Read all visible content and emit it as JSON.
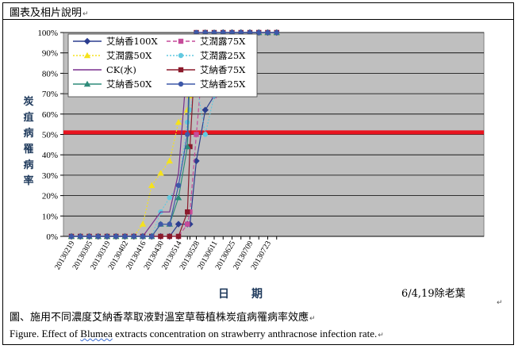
{
  "header": {
    "title": "圖表及相片說明"
  },
  "chart_data": {
    "type": "line",
    "ylabel": "炭疽病罹病率",
    "xlabel": "日期",
    "ylim": [
      0,
      100
    ],
    "y_ticks": [
      "0%",
      "10%",
      "20%",
      "30%",
      "40%",
      "50%",
      "60%",
      "70%",
      "80%",
      "90%",
      "100%"
    ],
    "x_tick_labels": [
      "20130219",
      "20130305",
      "20130319",
      "20130402",
      "20130416",
      "20130430",
      "20130514",
      "20130528",
      "20130611",
      "20130625",
      "20130709",
      "20130723"
    ],
    "annotation": "6/4,19除老葉",
    "reference_line": {
      "value": 51,
      "color": "#e8141f"
    },
    "plot_background": "#bfbfbf",
    "x": [
      "2013-02-19",
      "2013-02-26",
      "2013-03-05",
      "2013-03-12",
      "2013-03-19",
      "2013-03-26",
      "2013-04-02",
      "2013-04-09",
      "2013-04-16",
      "2013-04-23",
      "2013-04-30",
      "2013-05-07",
      "2013-05-14",
      "2013-05-21",
      "2013-05-23",
      "2013-05-28",
      "2013-06-04",
      "2013-06-11",
      "2013-06-18",
      "2013-06-25",
      "2013-07-02",
      "2013-07-09",
      "2013-07-16",
      "2013-07-23",
      "2013-07-30"
    ],
    "series": [
      {
        "name": "艾納香100X",
        "color": "#2b3d8f",
        "marker": "diamond",
        "dash": "solid",
        "values": [
          0,
          0,
          0,
          0,
          0,
          0,
          0,
          0,
          0,
          0,
          0,
          0,
          6,
          6,
          6,
          37,
          62,
          69,
          100,
          100,
          100,
          100,
          100,
          100,
          100
        ]
      },
      {
        "name": "艾潤露75X",
        "color": "#c64b9a",
        "marker": "square",
        "dash": "dashed",
        "values": [
          0,
          0,
          0,
          0,
          0,
          0,
          0,
          0,
          0,
          0,
          0,
          0,
          0,
          6,
          12,
          50,
          100,
          69,
          87,
          94,
          94,
          94,
          100,
          100,
          100
        ]
      },
      {
        "name": "艾潤露50X",
        "color": "#f5e21c",
        "marker": "triangle",
        "dash": "dotted",
        "values": [
          0,
          0,
          0,
          0,
          0,
          0,
          0,
          0,
          6,
          25,
          31,
          37,
          56,
          62,
          69,
          81,
          100,
          87,
          94,
          94,
          94,
          94,
          100,
          100,
          100
        ]
      },
      {
        "name": "艾潤露25X",
        "color": "#62c9e0",
        "marker": "circle",
        "dash": "dotted",
        "values": [
          0,
          0,
          0,
          0,
          0,
          0,
          0,
          0,
          0,
          0,
          12,
          19,
          25,
          56,
          62,
          75,
          50,
          69,
          75,
          87,
          94,
          94,
          100,
          100,
          100
        ]
      },
      {
        "name": "CK(水)",
        "color": "#7a2f8e",
        "marker": "none",
        "dash": "solid",
        "values": [
          0,
          0,
          0,
          0,
          0,
          0,
          0,
          0,
          0,
          6,
          12,
          12,
          31,
          87,
          90,
          100,
          100,
          100,
          100,
          100,
          100,
          100,
          100,
          100,
          100
        ]
      },
      {
        "name": "艾納香75X",
        "color": "#8b1a2b",
        "marker": "square",
        "dash": "solid",
        "values": [
          0,
          0,
          0,
          0,
          0,
          0,
          0,
          0,
          0,
          0,
          0,
          0,
          0,
          12,
          44,
          100,
          100,
          100,
          100,
          100,
          100,
          100,
          100,
          100,
          100
        ]
      },
      {
        "name": "艾納香50X",
        "color": "#2e8b7a",
        "marker": "triangle",
        "dash": "solid",
        "values": [
          0,
          0,
          0,
          0,
          0,
          0,
          0,
          0,
          0,
          0,
          6,
          6,
          19,
          44,
          81,
          87,
          100,
          100,
          100,
          100,
          100,
          100,
          100,
          100,
          100
        ]
      },
      {
        "name": "艾納香25X",
        "color": "#3e58a8",
        "marker": "circle",
        "dash": "solid",
        "values": [
          0,
          0,
          0,
          0,
          0,
          0,
          0,
          0,
          0,
          0,
          6,
          6,
          25,
          50,
          94,
          100,
          100,
          100,
          100,
          100,
          100,
          100,
          100,
          100,
          100
        ]
      }
    ]
  },
  "caption": {
    "zh": "圖、施用不同濃度艾納香萃取液對溫室草莓植株炭疽病罹病率效應",
    "en_before": "Figure. Effect of ",
    "en_word": "Blumea",
    "en_after": " extracts concentration on strawberry anthracnose infection rate."
  }
}
